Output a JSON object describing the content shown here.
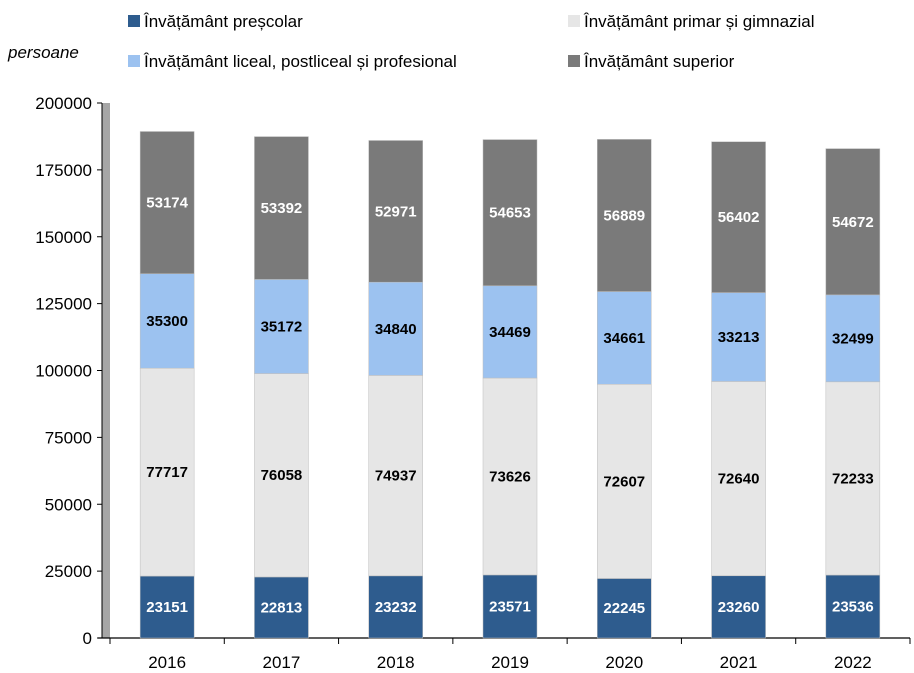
{
  "chart_data": {
    "type": "bar",
    "stacked": true,
    "unit_label": "persoane",
    "categories": [
      "2016",
      "2017",
      "2018",
      "2019",
      "2020",
      "2021",
      "2022"
    ],
    "series": [
      {
        "name": "Învățământ  preșcolar",
        "color": "#2e5c8e",
        "label_color": "#ffffff",
        "values": [
          23151,
          22813,
          23232,
          23571,
          22245,
          23260,
          23536
        ]
      },
      {
        "name": "Învățământ  primar și gimnazial",
        "color": "#e6e6e6",
        "label_color": "#000000",
        "values": [
          77717,
          76058,
          74937,
          73626,
          72607,
          72640,
          72233
        ]
      },
      {
        "name": "Învățământ  liceal, postliceal și profesional",
        "color": "#9cc2f0",
        "label_color": "#000000",
        "values": [
          35300,
          35172,
          34840,
          34469,
          34661,
          33213,
          32499
        ]
      },
      {
        "name": "Învățământ  superior",
        "color": "#7a7a7a",
        "label_color": "#ffffff",
        "values": [
          53174,
          53392,
          52971,
          54653,
          56889,
          56402,
          54672
        ]
      }
    ],
    "ylim": [
      0,
      200000
    ],
    "yticks": [
      "0",
      "25000",
      "50000",
      "75000",
      "100000",
      "125000",
      "150000",
      "175000",
      "200000"
    ],
    "legend_position": "top"
  }
}
